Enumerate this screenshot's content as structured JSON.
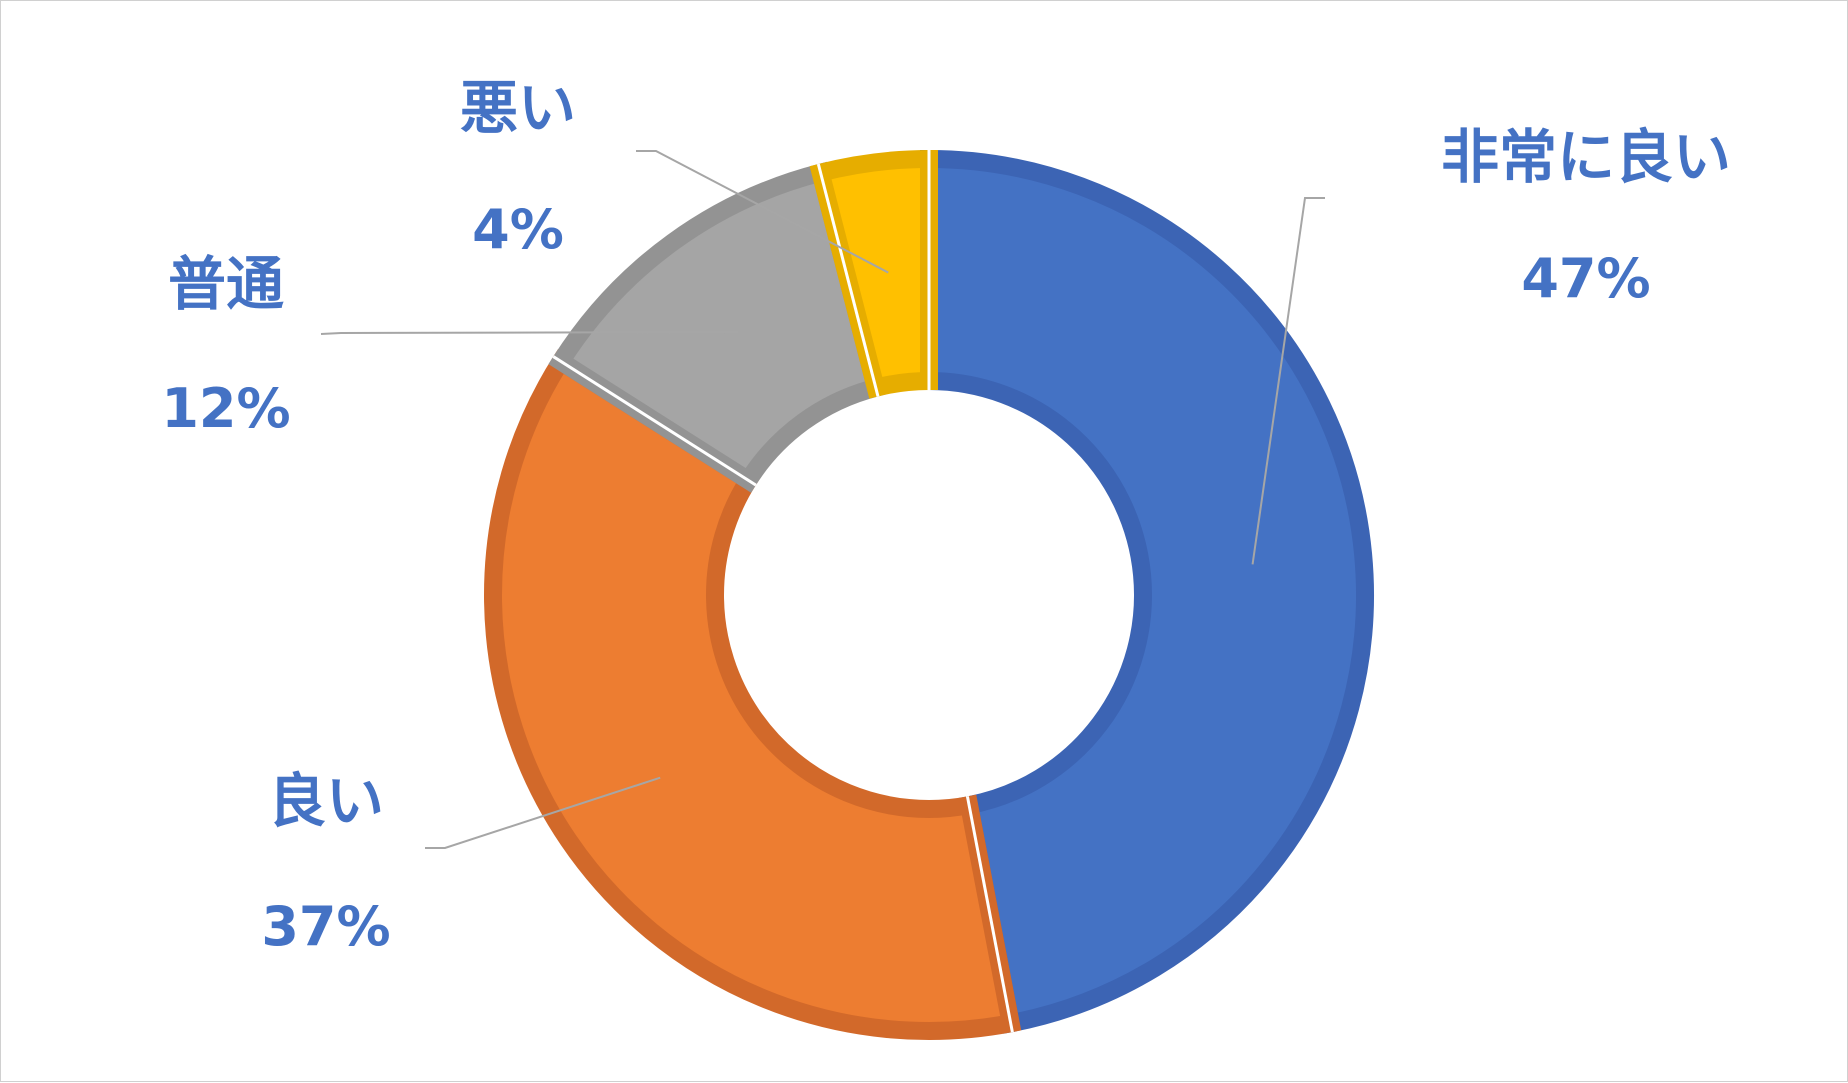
{
  "chart_data": {
    "type": "pie",
    "variant": "doughnut",
    "categories": [
      "非常に良い",
      "良い",
      "普通",
      "悪い"
    ],
    "values": [
      47,
      37,
      12,
      4
    ],
    "value_labels": [
      "47%",
      "37%",
      "12%",
      "4%"
    ],
    "colors": [
      "#4472C4",
      "#ED7D31",
      "#A5A5A5",
      "#FFC000"
    ],
    "border_colors": [
      "#3C64B4",
      "#D2692A",
      "#939393",
      "#E6AD00"
    ],
    "label_color": "#4472C4",
    "legend": "none",
    "title": ""
  }
}
